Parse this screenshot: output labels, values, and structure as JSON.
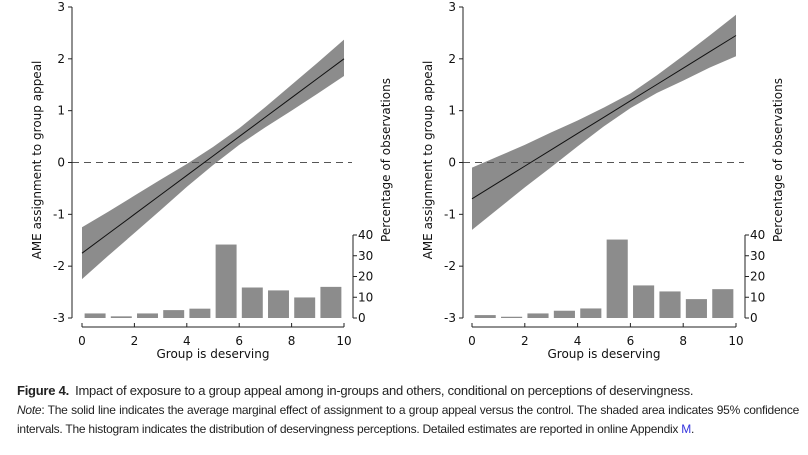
{
  "chart_data": [
    {
      "type": "line",
      "xlabel": "Group is deserving",
      "ylabel": "AME assignment to group appeal",
      "y2label": "Percentage of observations",
      "xlim": [
        0,
        10
      ],
      "ylim": [
        -3,
        3
      ],
      "y2lim": [
        0,
        40
      ],
      "xticks": [
        "0",
        "2",
        "4",
        "6",
        "8",
        "10"
      ],
      "yticks": [
        "-3",
        "-2",
        "-1",
        "0",
        "1",
        "2",
        "3"
      ],
      "y2ticks": [
        "0",
        "10",
        "20",
        "30",
        "40"
      ],
      "reference_line": 0,
      "line": {
        "x": [
          0,
          1,
          2,
          3,
          4,
          5,
          6,
          7,
          8,
          9,
          10
        ],
        "y": [
          -1.75,
          -1.375,
          -1.0,
          -0.625,
          -0.25,
          0.125,
          0.5,
          0.875,
          1.25,
          1.625,
          2.0
        ]
      },
      "ci_lower": [
        -2.25,
        -1.8,
        -1.36,
        -0.92,
        -0.47,
        -0.05,
        0.34,
        0.68,
        1.0,
        1.33,
        1.67
      ],
      "ci_upper": [
        -1.25,
        -0.95,
        -0.64,
        -0.33,
        -0.03,
        0.3,
        0.66,
        1.07,
        1.5,
        1.93,
        2.37
      ],
      "histogram": {
        "bins": [
          0,
          1,
          2,
          3,
          4,
          5,
          6,
          7,
          8,
          9
        ],
        "values": [
          2.2,
          0.8,
          2.2,
          3.8,
          4.5,
          35.4,
          14.7,
          13.3,
          9.9,
          15.0
        ]
      }
    },
    {
      "type": "line",
      "xlabel": "Group is deserving",
      "ylabel": "AME assignment to group appeal",
      "y2label": "Percentage of observations",
      "xlim": [
        0,
        10
      ],
      "ylim": [
        -3,
        3
      ],
      "y2lim": [
        0,
        40
      ],
      "xticks": [
        "0",
        "2",
        "4",
        "6",
        "8",
        "10"
      ],
      "yticks": [
        "-3",
        "-2",
        "-1",
        "0",
        "1",
        "2",
        "3"
      ],
      "y2ticks": [
        "0",
        "10",
        "20",
        "30",
        "40"
      ],
      "reference_line": 0,
      "line": {
        "x": [
          0,
          1,
          2,
          3,
          4,
          5,
          6,
          7,
          8,
          9,
          10
        ],
        "y": [
          -0.7,
          -0.385,
          -0.07,
          0.245,
          0.56,
          0.875,
          1.19,
          1.505,
          1.82,
          2.135,
          2.45
        ]
      },
      "ci_lower": [
        -1.3,
        -0.89,
        -0.48,
        -0.09,
        0.31,
        0.7,
        1.05,
        1.34,
        1.58,
        1.83,
        2.05
      ],
      "ci_upper": [
        -0.1,
        0.12,
        0.34,
        0.58,
        0.81,
        1.06,
        1.33,
        1.68,
        2.06,
        2.45,
        2.85
      ],
      "histogram": {
        "bins": [
          0,
          1,
          2,
          3,
          4,
          5,
          6,
          7,
          8,
          9
        ],
        "values": [
          1.4,
          0.6,
          2.2,
          3.5,
          4.6,
          37.8,
          15.7,
          12.8,
          9.1,
          13.9
        ]
      }
    }
  ],
  "colors": {
    "band": "#8c8c8c",
    "bars": "#8c8c8c",
    "line": "#111111",
    "link": "#3333dd"
  },
  "caption": {
    "label": "Figure 4.",
    "title": "Impact of exposure to a group appeal among in-groups and others, conditional on perceptions of deservingness.",
    "note_label": "Note",
    "note_text": ": The solid line indicates the average marginal effect of assignment to a group appeal versus the control. The shaded area indicates 95% confidence intervals. The histogram indicates the distribution of deservingness perceptions. Detailed estimates are reported in online Appendix ",
    "appendix_link": "M",
    "end": "."
  }
}
